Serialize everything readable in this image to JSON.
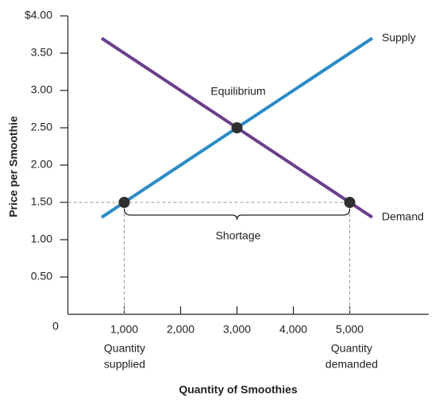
{
  "chart_data": {
    "type": "line",
    "y_label": "Price per Smoothie",
    "x_label": "Quantity of Smoothies",
    "xlim": [
      0,
      6400
    ],
    "ylim": [
      0,
      4
    ],
    "xticks": [
      {
        "value": 1000,
        "label": "1,000"
      },
      {
        "value": 2000,
        "label": "2,000"
      },
      {
        "value": 3000,
        "label": "3,000"
      },
      {
        "value": 4000,
        "label": "4,000"
      },
      {
        "value": 5000,
        "label": "5,000"
      }
    ],
    "yticks": [
      0,
      {
        "value": 0.5,
        "label": "0.50"
      },
      {
        "value": 1,
        "label": "1.00"
      },
      {
        "value": 1.5,
        "label": "1.50"
      },
      {
        "value": 2,
        "label": "2.00"
      },
      {
        "value": 2.5,
        "label": "2.50"
      },
      {
        "value": 3,
        "label": "3.00"
      },
      {
        "value": 3.5,
        "label": "3.50"
      },
      {
        "value": 4,
        "label": "$4.00"
      }
    ],
    "series": [
      {
        "name": "Supply",
        "color": "#2b8bc6",
        "x": [
          600,
          5400
        ],
        "values": [
          1.3,
          3.7
        ]
      },
      {
        "name": "Demand",
        "color": "#6b3f8c",
        "x": [
          600,
          5400
        ],
        "values": [
          3.7,
          1.3
        ]
      }
    ],
    "points": [
      {
        "x": 1000,
        "y": 1.5
      },
      {
        "x": 3000,
        "y": 2.5
      },
      {
        "x": 5000,
        "y": 1.5
      }
    ],
    "point_color": "#2f2f2f",
    "annotations": {
      "equilibrium": "Equilibrium",
      "shortage": "Shortage",
      "supplied": [
        "Quantity",
        "supplied"
      ],
      "demanded": [
        "Quantity",
        "demanded"
      ]
    }
  }
}
